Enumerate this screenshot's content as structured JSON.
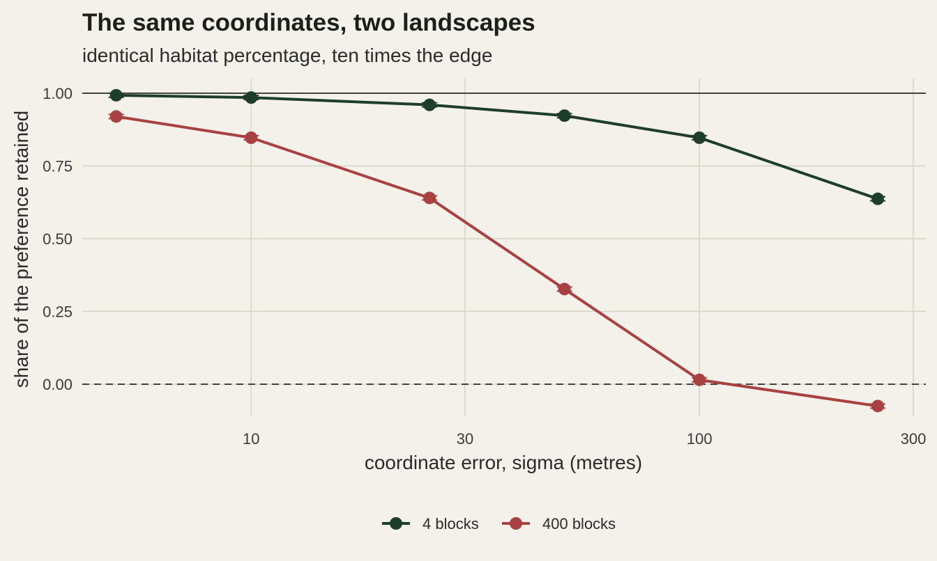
{
  "chart_data": {
    "type": "line",
    "title": "The same coordinates, two landscapes",
    "subtitle": "identical habitat percentage, ten times the edge",
    "xlabel": "coordinate error, sigma (metres)",
    "ylabel": "share of the preference retained",
    "x_scale": "log10",
    "xlim": [
      4.2,
      320
    ],
    "ylim": [
      -0.11,
      1.05
    ],
    "x_ticks": [
      10,
      30,
      100,
      300
    ],
    "x_tick_labels": [
      "10",
      "30",
      "100",
      "300"
    ],
    "y_ticks": [
      0,
      0.25,
      0.5,
      0.75,
      1
    ],
    "y_tick_labels": [
      "0.00",
      "0.25",
      "0.50",
      "0.75",
      "1.00"
    ],
    "grid": true,
    "reference_lines": [
      {
        "y": 1.0,
        "style": "solid"
      },
      {
        "y": 0.0,
        "style": "dashed"
      }
    ],
    "legend_position": "bottom",
    "x": [
      5,
      10,
      25,
      50,
      100,
      250
    ],
    "series": [
      {
        "name": "4 blocks",
        "color": "#1f3d2b",
        "values": [
          0.993,
          0.985,
          0.96,
          0.923,
          0.847,
          0.637
        ]
      },
      {
        "name": "400 blocks",
        "color": "#a84242",
        "values": [
          0.92,
          0.847,
          0.64,
          0.327,
          0.015,
          -0.075
        ]
      }
    ]
  }
}
